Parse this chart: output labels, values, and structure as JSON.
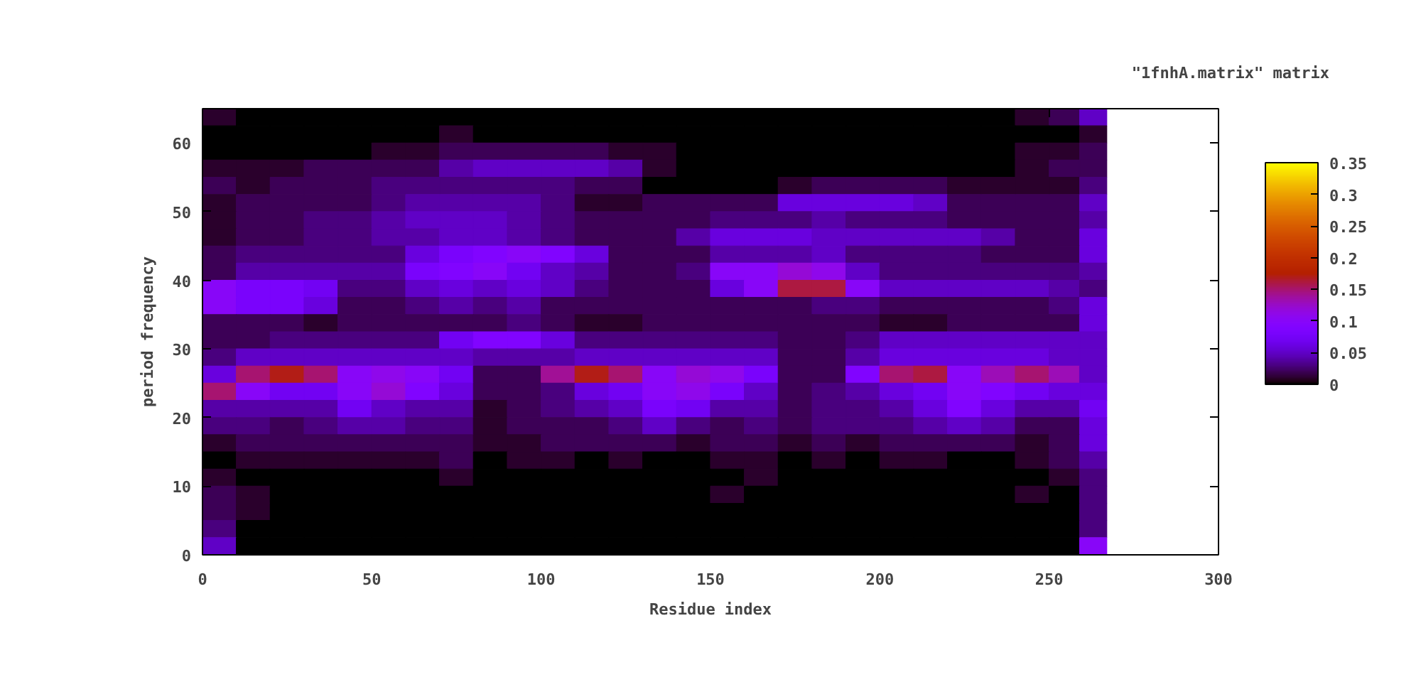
{
  "chart_data": {
    "type": "heatmap",
    "title": "\"1fnhA.matrix\" matrix",
    "xlabel": "Residue index",
    "ylabel": "period frequency",
    "x": [
      5,
      15,
      25,
      35,
      45,
      55,
      65,
      75,
      85,
      95,
      105,
      115,
      125,
      135,
      145,
      155,
      165,
      175,
      185,
      195,
      205,
      215,
      225,
      235,
      245,
      255,
      263
    ],
    "cells": [
      [
        0.01,
        0,
        0,
        0,
        0,
        0,
        0,
        0,
        0,
        0,
        0,
        0,
        0,
        0,
        0,
        0,
        0,
        0,
        0,
        0,
        0,
        0,
        0,
        0,
        0.01,
        0.02,
        0.05
      ],
      [
        0,
        0,
        0,
        0,
        0,
        0,
        0,
        0.01,
        0,
        0,
        0,
        0,
        0,
        0,
        0,
        0,
        0,
        0,
        0,
        0,
        0,
        0,
        0,
        0,
        0,
        0,
        0.01
      ],
      [
        0,
        0,
        0,
        0,
        0,
        0.01,
        0.01,
        0.02,
        0.02,
        0.02,
        0.02,
        0.02,
        0.01,
        0.01,
        0,
        0,
        0,
        0,
        0,
        0,
        0,
        0,
        0,
        0,
        0.01,
        0.01,
        0.02
      ],
      [
        0.01,
        0.01,
        0.01,
        0.02,
        0.02,
        0.02,
        0.02,
        0.04,
        0.05,
        0.05,
        0.05,
        0.05,
        0.04,
        0.01,
        0,
        0,
        0,
        0,
        0,
        0,
        0,
        0,
        0,
        0,
        0.01,
        0.02,
        0.02
      ],
      [
        0.02,
        0.01,
        0.02,
        0.02,
        0.02,
        0.03,
        0.03,
        0.03,
        0.03,
        0.03,
        0.03,
        0.02,
        0.02,
        0,
        0,
        0,
        0,
        0.01,
        0.02,
        0.02,
        0.02,
        0.02,
        0.01,
        0.01,
        0.01,
        0.01,
        0.03
      ],
      [
        0.01,
        0.02,
        0.02,
        0.02,
        0.02,
        0.03,
        0.04,
        0.04,
        0.04,
        0.04,
        0.03,
        0.01,
        0.01,
        0.02,
        0.02,
        0.02,
        0.02,
        0.06,
        0.06,
        0.06,
        0.06,
        0.05,
        0.02,
        0.02,
        0.02,
        0.02,
        0.05
      ],
      [
        0.01,
        0.02,
        0.02,
        0.03,
        0.03,
        0.04,
        0.05,
        0.05,
        0.05,
        0.04,
        0.03,
        0.02,
        0.02,
        0.02,
        0.02,
        0.03,
        0.03,
        0.03,
        0.04,
        0.03,
        0.03,
        0.03,
        0.02,
        0.02,
        0.02,
        0.02,
        0.04
      ],
      [
        0.01,
        0.02,
        0.02,
        0.03,
        0.03,
        0.04,
        0.04,
        0.05,
        0.05,
        0.04,
        0.03,
        0.02,
        0.02,
        0.02,
        0.04,
        0.06,
        0.06,
        0.06,
        0.05,
        0.05,
        0.05,
        0.05,
        0.05,
        0.04,
        0.02,
        0.02,
        0.06
      ],
      [
        0.02,
        0.03,
        0.03,
        0.03,
        0.03,
        0.03,
        0.06,
        0.08,
        0.09,
        0.1,
        0.09,
        0.06,
        0.02,
        0.02,
        0.02,
        0.04,
        0.04,
        0.04,
        0.05,
        0.03,
        0.03,
        0.03,
        0.03,
        0.02,
        0.02,
        0.02,
        0.06
      ],
      [
        0.02,
        0.04,
        0.04,
        0.04,
        0.04,
        0.04,
        0.08,
        0.09,
        0.1,
        0.07,
        0.05,
        0.04,
        0.02,
        0.02,
        0.03,
        0.1,
        0.1,
        0.12,
        0.11,
        0.05,
        0.03,
        0.03,
        0.03,
        0.03,
        0.03,
        0.03,
        0.04
      ],
      [
        0.1,
        0.08,
        0.08,
        0.07,
        0.03,
        0.03,
        0.05,
        0.06,
        0.05,
        0.06,
        0.05,
        0.03,
        0.02,
        0.02,
        0.02,
        0.06,
        0.1,
        0.16,
        0.16,
        0.1,
        0.05,
        0.05,
        0.05,
        0.05,
        0.05,
        0.04,
        0.03
      ],
      [
        0.1,
        0.08,
        0.08,
        0.06,
        0.02,
        0.02,
        0.03,
        0.04,
        0.03,
        0.04,
        0.02,
        0.02,
        0.02,
        0.02,
        0.02,
        0.02,
        0.02,
        0.02,
        0.03,
        0.03,
        0.02,
        0.02,
        0.02,
        0.02,
        0.02,
        0.03,
        0.06
      ],
      [
        0.02,
        0.02,
        0.02,
        0.01,
        0.02,
        0.02,
        0.02,
        0.02,
        0.02,
        0.03,
        0.02,
        0.01,
        0.01,
        0.02,
        0.02,
        0.02,
        0.02,
        0.02,
        0.02,
        0.02,
        0.01,
        0.01,
        0.02,
        0.02,
        0.02,
        0.02,
        0.06
      ],
      [
        0.02,
        0.02,
        0.03,
        0.03,
        0.03,
        0.03,
        0.03,
        0.07,
        0.09,
        0.09,
        0.06,
        0.03,
        0.03,
        0.03,
        0.03,
        0.03,
        0.03,
        0.02,
        0.02,
        0.03,
        0.05,
        0.05,
        0.05,
        0.05,
        0.05,
        0.05,
        0.05
      ],
      [
        0.03,
        0.05,
        0.05,
        0.05,
        0.05,
        0.05,
        0.05,
        0.05,
        0.04,
        0.04,
        0.04,
        0.05,
        0.05,
        0.05,
        0.05,
        0.05,
        0.05,
        0.02,
        0.02,
        0.04,
        0.06,
        0.06,
        0.06,
        0.06,
        0.06,
        0.05,
        0.05
      ],
      [
        0.06,
        0.15,
        0.17,
        0.15,
        0.1,
        0.11,
        0.1,
        0.07,
        0.02,
        0.02,
        0.14,
        0.17,
        0.15,
        0.1,
        0.12,
        0.11,
        0.08,
        0.02,
        0.02,
        0.09,
        0.15,
        0.16,
        0.1,
        0.13,
        0.15,
        0.13,
        0.05
      ],
      [
        0.15,
        0.1,
        0.07,
        0.07,
        0.1,
        0.12,
        0.09,
        0.06,
        0.02,
        0.02,
        0.03,
        0.06,
        0.07,
        0.1,
        0.11,
        0.08,
        0.05,
        0.02,
        0.03,
        0.04,
        0.06,
        0.07,
        0.1,
        0.09,
        0.07,
        0.06,
        0.06
      ],
      [
        0.04,
        0.04,
        0.04,
        0.04,
        0.07,
        0.05,
        0.04,
        0.04,
        0.01,
        0.02,
        0.03,
        0.04,
        0.05,
        0.08,
        0.07,
        0.04,
        0.04,
        0.02,
        0.03,
        0.03,
        0.04,
        0.06,
        0.09,
        0.06,
        0.04,
        0.04,
        0.07
      ],
      [
        0.03,
        0.03,
        0.02,
        0.03,
        0.04,
        0.04,
        0.03,
        0.03,
        0.01,
        0.02,
        0.02,
        0.02,
        0.03,
        0.05,
        0.03,
        0.02,
        0.03,
        0.02,
        0.03,
        0.03,
        0.03,
        0.04,
        0.05,
        0.04,
        0.02,
        0.02,
        0.06
      ],
      [
        0.01,
        0.02,
        0.02,
        0.02,
        0.02,
        0.02,
        0.02,
        0.02,
        0.01,
        0.01,
        0.02,
        0.02,
        0.02,
        0.02,
        0.01,
        0.02,
        0.02,
        0.01,
        0.02,
        0.01,
        0.02,
        0.02,
        0.02,
        0.02,
        0.01,
        0.02,
        0.06
      ],
      [
        0,
        0.01,
        0.01,
        0.01,
        0.01,
        0.01,
        0.01,
        0.02,
        0,
        0.01,
        0.01,
        0,
        0.01,
        0,
        0,
        0.01,
        0.01,
        0,
        0.01,
        0,
        0.01,
        0.01,
        0,
        0,
        0.01,
        0.02,
        0.04
      ],
      [
        0.01,
        0,
        0,
        0,
        0,
        0,
        0,
        0.01,
        0,
        0,
        0,
        0,
        0,
        0,
        0,
        0,
        0.01,
        0,
        0,
        0,
        0,
        0,
        0,
        0,
        0,
        0.01,
        0.03
      ],
      [
        0.02,
        0.01,
        0,
        0,
        0,
        0,
        0,
        0,
        0,
        0,
        0,
        0,
        0,
        0,
        0,
        0.01,
        0,
        0,
        0,
        0,
        0,
        0,
        0,
        0,
        0.01,
        0,
        0.03
      ],
      [
        0.02,
        0.01,
        0,
        0,
        0,
        0,
        0,
        0,
        0,
        0,
        0,
        0,
        0,
        0,
        0,
        0,
        0,
        0,
        0,
        0,
        0,
        0,
        0,
        0,
        0,
        0,
        0.03
      ],
      [
        0.03,
        0,
        0,
        0,
        0,
        0,
        0,
        0,
        0,
        0,
        0,
        0,
        0,
        0,
        0,
        0,
        0,
        0,
        0,
        0,
        0,
        0,
        0,
        0,
        0,
        0,
        0.03
      ],
      [
        0.05,
        0,
        0,
        0,
        0,
        0,
        0,
        0,
        0,
        0,
        0,
        0,
        0,
        0,
        0,
        0,
        0,
        0,
        0,
        0,
        0,
        0,
        0,
        0,
        0,
        0,
        0.1
      ]
    ],
    "clim": [
      0,
      0.35
    ],
    "cticks": [
      0,
      0.05,
      0.1,
      0.15,
      0.2,
      0.25,
      0.3,
      0.35
    ],
    "xlim": [
      0,
      300
    ],
    "ylim": [
      0,
      65
    ],
    "xticks": [
      0,
      50,
      100,
      150,
      200,
      250,
      300
    ],
    "yticks": [
      0,
      10,
      20,
      30,
      40,
      50,
      60
    ]
  }
}
